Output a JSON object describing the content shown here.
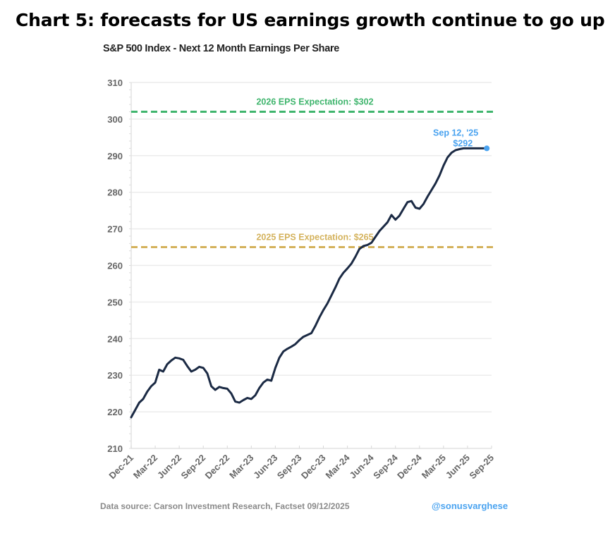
{
  "headline": "Chart 5: forecasts for US earnings growth continue to go up",
  "footer": {
    "source": "Data source: Carson Investment Research, Factset   09/12/2025",
    "handle": "@sonusvarghese"
  },
  "colors": {
    "line": "#1b2a44",
    "expectation_2026": "#3fb56d",
    "expectation_2025": "#d4b25c",
    "latest_point": "#4aa3f0",
    "axis_text": "#666666",
    "grid": "#ececec"
  },
  "chart_data": {
    "type": "line",
    "title": "S&P 500 Index - Next 12 Month Earnings Per Share",
    "xlabel": "",
    "ylabel": "",
    "ylim": [
      210,
      310
    ],
    "yticks": [
      210,
      220,
      230,
      240,
      250,
      260,
      270,
      280,
      290,
      300,
      310
    ],
    "grid": true,
    "x_tick_labels": [
      "Dec-21",
      "Mar-22",
      "Jun-22",
      "Sep-22",
      "Dec-22",
      "Mar-23",
      "Jun-23",
      "Sep-23",
      "Dec-23",
      "Mar-24",
      "Jun-24",
      "Sep-24",
      "Dec-24",
      "Mar-25",
      "Jun-25",
      "Sep-25"
    ],
    "x_unit": "months since Dec-21",
    "xlim": [
      0,
      45
    ],
    "series": [
      {
        "name": "S&P 500 Next 12 Month EPS",
        "x": [
          0,
          0.5,
          1,
          1.5,
          2,
          2.5,
          3,
          3.5,
          4,
          4.5,
          5,
          5.5,
          6,
          6.5,
          7,
          7.5,
          8,
          8.5,
          9,
          9.5,
          10,
          10.5,
          11,
          11.5,
          12,
          12.5,
          13,
          13.5,
          14,
          14.5,
          15,
          15.5,
          16,
          16.5,
          17,
          17.5,
          18,
          18.5,
          19,
          19.5,
          20,
          20.5,
          21,
          21.5,
          22,
          22.5,
          23,
          23.5,
          24,
          24.5,
          25,
          25.5,
          26,
          26.5,
          27,
          27.5,
          28,
          28.5,
          29,
          29.5,
          30,
          30.5,
          31,
          31.5,
          32,
          32.5,
          33,
          33.5,
          34,
          34.5,
          35,
          35.5,
          36,
          36.5,
          37,
          37.5,
          38,
          38.5,
          39,
          39.5,
          40,
          40.5,
          41,
          41.5,
          42,
          42.5,
          43,
          43.5,
          44,
          44.4
        ],
        "y": [
          218.5,
          220.5,
          222.5,
          223.5,
          225.5,
          227,
          228,
          231.5,
          231,
          233,
          234,
          234.8,
          234.6,
          234.2,
          232.5,
          231,
          231.5,
          232.3,
          232,
          230.5,
          227,
          226,
          226.8,
          226.5,
          226.3,
          225,
          222.8,
          222.5,
          223.2,
          223.8,
          223.5,
          224.5,
          226.5,
          228,
          228.8,
          228.5,
          232,
          234.8,
          236.5,
          237.2,
          237.8,
          238.5,
          239.6,
          240.5,
          241,
          241.5,
          243.5,
          245.8,
          247.8,
          249.6,
          251.8,
          254,
          256.4,
          258,
          259.2,
          260.5,
          262.4,
          264.5,
          265.3,
          265.6,
          266.2,
          267.8,
          269.4,
          270.6,
          271.8,
          273.8,
          272.5,
          273.6,
          275.5,
          277.3,
          277.6,
          275.8,
          275.5,
          276.8,
          278.8,
          280.6,
          282.4,
          284.6,
          287.3,
          289.5,
          290.8,
          291.5,
          291.8,
          292,
          292,
          292,
          292,
          292,
          292,
          292
        ]
      }
    ],
    "reference_lines": [
      {
        "label": "2026 EPS Expectation: $302",
        "value": 302,
        "style": "dashed",
        "color_key": "expectation_2026"
      },
      {
        "label": "2025 EPS Expectation: $265",
        "value": 265,
        "style": "dashed",
        "color_key": "expectation_2025"
      }
    ],
    "annotations": [
      {
        "text_line1": "Sep 12, '25",
        "text_line2": "$292",
        "x": 44.4,
        "y": 292
      }
    ],
    "legend": "none"
  }
}
